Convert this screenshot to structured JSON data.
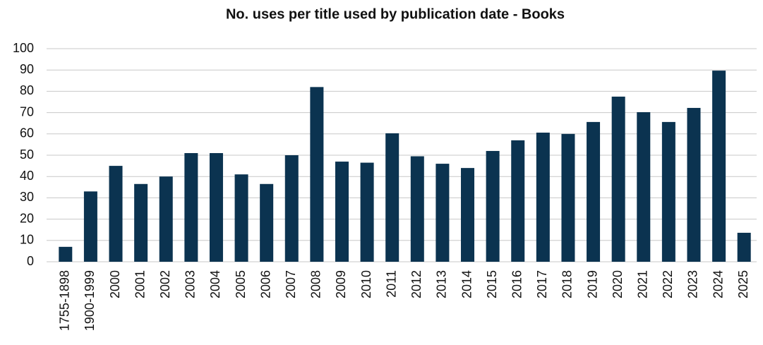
{
  "chart_data": {
    "type": "bar",
    "title": "No. uses per title used by publication date - Books",
    "categories": [
      "1755-1898",
      "1900-1999",
      "2000",
      "2001",
      "2002",
      "2003",
      "2004",
      "2005",
      "2006",
      "2007",
      "2008",
      "2009",
      "2010",
      "2011",
      "2012",
      "2013",
      "2014",
      "2015",
      "2016",
      "2017",
      "2018",
      "2019",
      "2020",
      "2021",
      "2022",
      "2023",
      "2024",
      "2025"
    ],
    "values": [
      7,
      33,
      45,
      36.5,
      40,
      51,
      51,
      41,
      36.5,
      50,
      82,
      47,
      46.5,
      60.3,
      49.5,
      46,
      44,
      52,
      57,
      60.6,
      60,
      65.6,
      77.5,
      70.2,
      65.6,
      72.2,
      89.7,
      13.6
    ],
    "color": "#0b3350",
    "ylim": [
      0,
      100
    ],
    "yticks": [
      0,
      10,
      20,
      30,
      40,
      50,
      60,
      70,
      80,
      90,
      100
    ],
    "grid": true
  }
}
